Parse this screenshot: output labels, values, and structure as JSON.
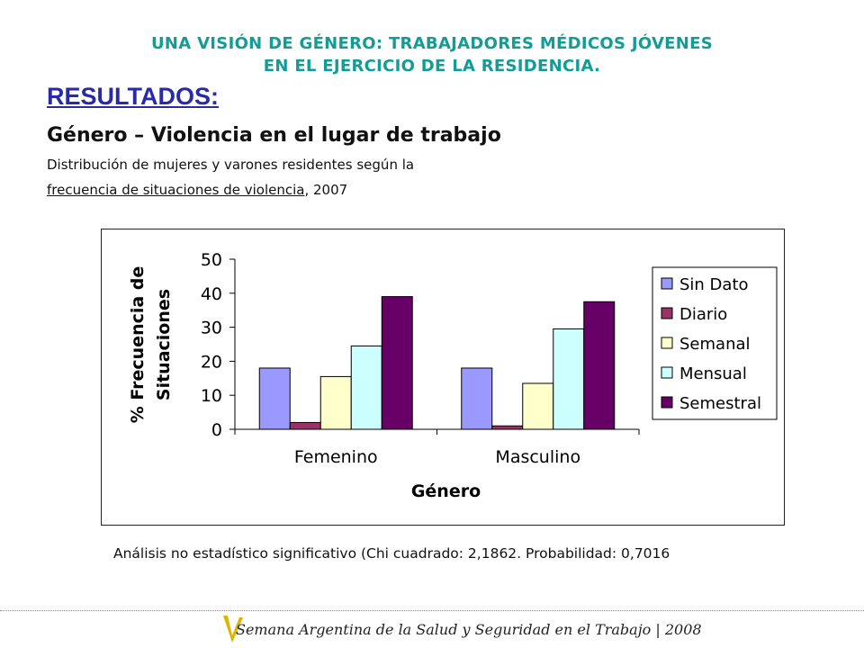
{
  "header": {
    "title_line1": "UNA VISIÓN DE GÉNERO: TRABAJADORES MÉDICOS JÓVENES",
    "title_line2": "EN EL EJERCICIO DE LA RESIDENCIA."
  },
  "section": {
    "heading": "RESULTADOS:",
    "subtitle": "Género – Violencia en el lugar de trabajo",
    "desc_line1": "Distribución de mujeres y varones residentes según la",
    "desc_line2_underlined": "frecuencia de situaciones de violencia",
    "desc_line2_rest": ", 2007"
  },
  "chart_data": {
    "type": "bar",
    "categories": [
      "Femenino",
      "Masculino"
    ],
    "series": [
      {
        "name": "Sin Dato",
        "values": [
          18,
          18
        ],
        "color": "#9999ff"
      },
      {
        "name": "Diario",
        "values": [
          2,
          1
        ],
        "color": "#993366"
      },
      {
        "name": "Semanal",
        "values": [
          15.5,
          13.5
        ],
        "color": "#ffffcc"
      },
      {
        "name": "Mensual",
        "values": [
          24.5,
          29.5
        ],
        "color": "#ccffff"
      },
      {
        "name": "Semestral",
        "values": [
          39,
          37.5
        ],
        "color": "#660066"
      }
    ],
    "title": "",
    "xlabel": "Género",
    "ylabel_line1": "% Frecuencia de",
    "ylabel_line2": "Situaciones",
    "ylim": [
      0,
      50
    ],
    "yticks": [
      "0",
      "10",
      "20",
      "30",
      "40",
      "50"
    ],
    "grid": false,
    "legend": "right"
  },
  "note": "Análisis no estadístico significativo (Chi cuadrado: 2,1862. Probabilidad: 0,7016",
  "footer": {
    "text": "Semana Argentina de la Salud y Seguridad en el Trabajo | 2008",
    "logo_color": "#e0b400"
  }
}
